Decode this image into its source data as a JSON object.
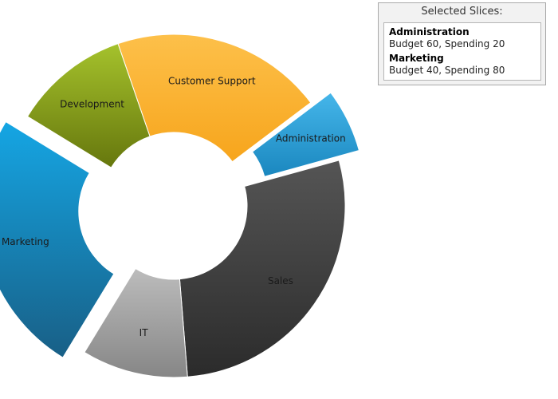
{
  "panel": {
    "title": "Selected Slices:",
    "items": [
      {
        "name": "Administration",
        "detail": "Budget 60, Spending 20"
      },
      {
        "name": "Marketing",
        "detail": "Budget 40, Spending 80"
      }
    ]
  },
  "chart_data": {
    "type": "pie",
    "variant": "doughnut",
    "title": "",
    "categories": [
      "Customer Support",
      "Administration",
      "Sales",
      "IT",
      "Marketing",
      "Development"
    ],
    "values": [
      20,
      6,
      28,
      10,
      25,
      11
    ],
    "selected": [
      "Administration",
      "Marketing"
    ],
    "colors": {
      "Customer Support": [
        "#fdc04a",
        "#f7a51c"
      ],
      "Administration": [
        "#45b6ea",
        "#1a87bf"
      ],
      "Sales": [
        "#555555",
        "#2b2b2b"
      ],
      "IT": [
        "#bcbcbc",
        "#868686"
      ],
      "Marketing": [
        "#15a6e4",
        "#185f86"
      ],
      "Development": [
        "#a5c22c",
        "#66770d"
      ]
    }
  }
}
